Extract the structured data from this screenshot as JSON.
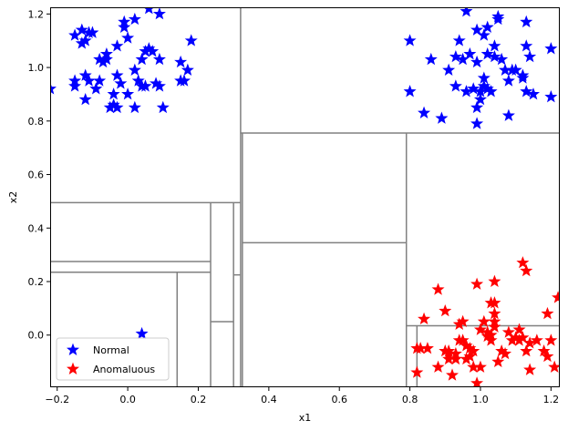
{
  "chart_data": {
    "type": "scatter",
    "title": "",
    "xlabel": "x1",
    "ylabel": "x2",
    "xlim": [
      -0.22,
      1.225
    ],
    "ylim": [
      -0.195,
      1.225
    ],
    "xticks": [
      -0.2,
      0.0,
      0.2,
      0.4,
      0.6,
      0.8,
      1.0,
      1.2
    ],
    "xtick_labels": [
      "−0.2",
      "0.0",
      "0.2",
      "0.4",
      "0.6",
      "0.8",
      "1.0",
      "1.2"
    ],
    "yticks": [
      0.0,
      0.2,
      0.4,
      0.6,
      0.8,
      1.0,
      1.2
    ],
    "ytick_labels": [
      "0.0",
      "0.2",
      "0.4",
      "0.6",
      "0.8",
      "1.0",
      "1.2"
    ],
    "grid": false,
    "legend_position": "lower-left",
    "marker": "star",
    "series": [
      {
        "name": "Normal",
        "color": "#0000ff",
        "points": [
          [
            -0.22,
            0.92
          ],
          [
            -0.15,
            1.12
          ],
          [
            -0.13,
            1.14
          ],
          [
            -0.12,
            1.1
          ],
          [
            -0.11,
            1.13
          ],
          [
            -0.13,
            1.09
          ],
          [
            -0.1,
            1.13
          ],
          [
            -0.08,
            1.03
          ],
          [
            -0.06,
            1.05
          ],
          [
            -0.03,
            1.08
          ],
          [
            -0.01,
            1.15
          ],
          [
            0.0,
            1.11
          ],
          [
            0.02,
            1.18
          ],
          [
            -0.01,
            1.17
          ],
          [
            0.06,
            1.22
          ],
          [
            0.09,
            1.2
          ],
          [
            0.18,
            1.1
          ],
          [
            0.06,
            1.07
          ],
          [
            0.05,
            1.06
          ],
          [
            0.07,
            1.06
          ],
          [
            0.04,
            1.03
          ],
          [
            0.02,
            0.99
          ],
          [
            0.09,
            1.03
          ],
          [
            -0.06,
            1.03
          ],
          [
            -0.07,
            1.02
          ],
          [
            -0.15,
            0.95
          ],
          [
            -0.15,
            0.93
          ],
          [
            -0.12,
            0.97
          ],
          [
            -0.12,
            0.88
          ],
          [
            -0.09,
            0.92
          ],
          [
            -0.08,
            0.95
          ],
          [
            -0.04,
            0.9
          ],
          [
            -0.03,
            0.97
          ],
          [
            -0.02,
            0.94
          ],
          [
            0.0,
            0.9
          ],
          [
            0.03,
            0.95
          ],
          [
            0.04,
            0.93
          ],
          [
            0.05,
            0.93
          ],
          [
            0.08,
            0.94
          ],
          [
            0.09,
            0.93
          ],
          [
            0.15,
            0.95
          ],
          [
            0.16,
            0.95
          ],
          [
            0.17,
            0.99
          ],
          [
            0.15,
            1.02
          ],
          [
            -0.05,
            0.85
          ],
          [
            -0.04,
            0.86
          ],
          [
            -0.03,
            0.85
          ],
          [
            0.02,
            0.85
          ],
          [
            0.1,
            0.85
          ],
          [
            -0.11,
            0.95
          ],
          [
            0.04,
            0.005
          ],
          [
            0.8,
            1.1
          ],
          [
            0.8,
            0.91
          ],
          [
            0.84,
            0.83
          ],
          [
            0.86,
            1.03
          ],
          [
            0.89,
            0.81
          ],
          [
            0.91,
            0.99
          ],
          [
            0.93,
            1.04
          ],
          [
            0.93,
            0.93
          ],
          [
            0.94,
            1.1
          ],
          [
            0.95,
            1.03
          ],
          [
            0.96,
            1.21
          ],
          [
            0.96,
            0.91
          ],
          [
            0.97,
            1.05
          ],
          [
            0.98,
            0.92
          ],
          [
            0.99,
            1.14
          ],
          [
            0.99,
            1.02
          ],
          [
            0.99,
            0.85
          ],
          [
            0.99,
            0.79
          ],
          [
            1.0,
            0.88
          ],
          [
            1.0,
            0.91
          ],
          [
            1.01,
            1.12
          ],
          [
            1.01,
            0.96
          ],
          [
            1.01,
            0.93
          ],
          [
            1.02,
            1.15
          ],
          [
            1.02,
            1.05
          ],
          [
            1.02,
            0.92
          ],
          [
            1.03,
            0.91
          ],
          [
            1.04,
            1.08
          ],
          [
            1.04,
            1.04
          ],
          [
            1.05,
            1.19
          ],
          [
            1.05,
            1.18
          ],
          [
            1.06,
            1.03
          ],
          [
            1.07,
            0.99
          ],
          [
            1.08,
            0.95
          ],
          [
            1.08,
            0.82
          ],
          [
            1.09,
            0.99
          ],
          [
            1.1,
            0.99
          ],
          [
            1.12,
            0.97
          ],
          [
            1.12,
            0.96
          ],
          [
            1.13,
            1.17
          ],
          [
            1.13,
            1.08
          ],
          [
            1.13,
            0.91
          ],
          [
            1.14,
            1.04
          ],
          [
            1.15,
            0.9
          ],
          [
            1.2,
            1.07
          ],
          [
            1.2,
            0.89
          ]
        ]
      },
      {
        "name": "Anomaluous",
        "color": "#ff0000",
        "points": [
          [
            0.82,
            -0.14
          ],
          [
            0.82,
            -0.05
          ],
          [
            0.83,
            -0.05
          ],
          [
            0.84,
            0.06
          ],
          [
            0.85,
            -0.05
          ],
          [
            0.88,
            0.17
          ],
          [
            0.88,
            -0.12
          ],
          [
            0.9,
            -0.06
          ],
          [
            0.9,
            0.09
          ],
          [
            0.91,
            -0.09
          ],
          [
            0.91,
            -0.06
          ],
          [
            0.91,
            -0.07
          ],
          [
            0.92,
            -0.15
          ],
          [
            0.93,
            -0.07
          ],
          [
            0.93,
            -0.09
          ],
          [
            0.94,
            -0.02
          ],
          [
            0.94,
            0.04
          ],
          [
            0.95,
            0.05
          ],
          [
            0.95,
            -0.02
          ],
          [
            0.96,
            -0.09
          ],
          [
            0.96,
            -0.04
          ],
          [
            0.97,
            -0.08
          ],
          [
            0.97,
            -0.05
          ],
          [
            0.98,
            -0.06
          ],
          [
            0.98,
            -0.12
          ],
          [
            0.99,
            -0.18
          ],
          [
            0.99,
            0.19
          ],
          [
            1.0,
            -0.12
          ],
          [
            1.0,
            0.02
          ],
          [
            1.01,
            0.05
          ],
          [
            1.02,
            0.01
          ],
          [
            1.02,
            -0.005
          ],
          [
            1.03,
            0.12
          ],
          [
            1.03,
            0.0
          ],
          [
            1.03,
            -0.02
          ],
          [
            1.04,
            0.03
          ],
          [
            1.04,
            0.2
          ],
          [
            1.04,
            0.12
          ],
          [
            1.04,
            0.08
          ],
          [
            1.04,
            0.05
          ],
          [
            1.05,
            -0.1
          ],
          [
            1.06,
            -0.06
          ],
          [
            1.07,
            -0.07
          ],
          [
            1.08,
            0.01
          ],
          [
            1.09,
            -0.02
          ],
          [
            1.1,
            -0.01
          ],
          [
            1.11,
            0.02
          ],
          [
            1.11,
            -0.02
          ],
          [
            1.12,
            0.27
          ],
          [
            1.12,
            -0.01
          ],
          [
            1.13,
            0.24
          ],
          [
            1.13,
            -0.06
          ],
          [
            1.14,
            -0.03
          ],
          [
            1.14,
            -0.13
          ],
          [
            1.16,
            -0.02
          ],
          [
            1.18,
            -0.06
          ],
          [
            1.19,
            0.08
          ],
          [
            1.19,
            -0.08
          ],
          [
            1.2,
            -0.02
          ],
          [
            1.21,
            -0.12
          ],
          [
            1.22,
            0.14
          ]
        ]
      }
    ],
    "partitions": {
      "color": "#808080",
      "vertical": [
        {
          "x": 0.32,
          "y0": -0.195,
          "y1": 1.225
        },
        {
          "x": 0.325,
          "y0": -0.195,
          "y1": 0.755
        },
        {
          "x": 0.79,
          "y0": -0.195,
          "y1": 0.755
        },
        {
          "x": 0.235,
          "y0": -0.195,
          "y1": 0.495
        },
        {
          "x": 0.3,
          "y0": -0.195,
          "y1": 0.495
        },
        {
          "x": 0.14,
          "y0": -0.195,
          "y1": 0.235
        },
        {
          "x": 0.82,
          "y0": -0.195,
          "y1": 0.035
        }
      ],
      "horizontal": [
        {
          "y": 0.755,
          "x0": 0.32,
          "x1": 1.225
        },
        {
          "y": 0.495,
          "x0": -0.22,
          "x1": 0.32
        },
        {
          "y": 0.345,
          "x0": 0.325,
          "x1": 0.79
        },
        {
          "y": 0.275,
          "x0": -0.22,
          "x1": 0.235
        },
        {
          "y": 0.235,
          "x0": -0.22,
          "x1": 0.235
        },
        {
          "y": 0.225,
          "x0": 0.3,
          "x1": 0.32
        },
        {
          "y": 0.05,
          "x0": 0.235,
          "x1": 0.3
        },
        {
          "y": 0.035,
          "x0": 0.79,
          "x1": 1.225
        }
      ]
    }
  }
}
